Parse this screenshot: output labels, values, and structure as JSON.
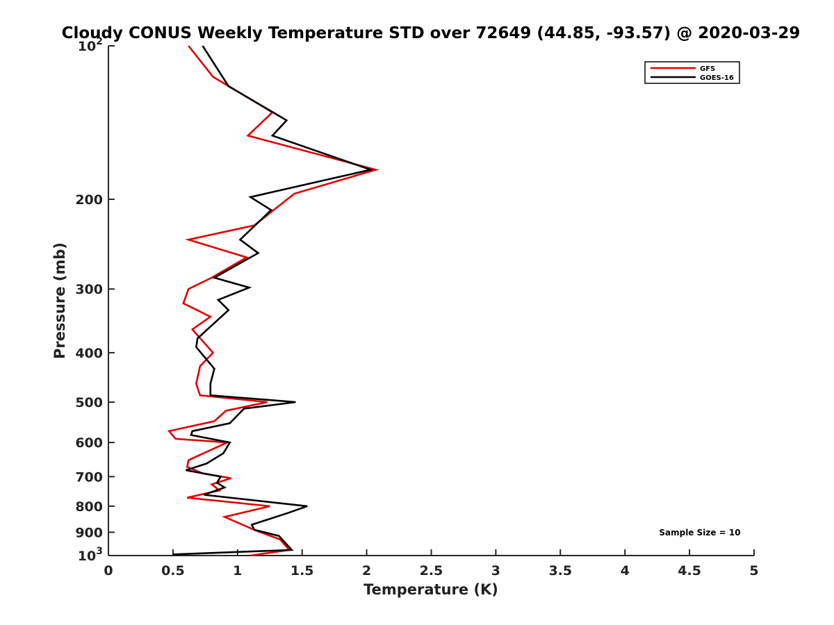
{
  "chart_data": {
    "type": "line",
    "title": "Cloudy CONUS Weekly Temperature STD over 72649 (44.85, -93.57) @ 2020-03-29",
    "xlabel": "Temperature (K)",
    "ylabel": "Pressure (mb)",
    "xlim": [
      0,
      5
    ],
    "ylim": [
      1000,
      100
    ],
    "yscale": "log",
    "y_reversed": true,
    "grid": false,
    "x_ticks": [
      0,
      0.5,
      1,
      1.5,
      2,
      2.5,
      3,
      3.5,
      4,
      4.5,
      5
    ],
    "x_tick_labels": [
      "0",
      "0.5",
      "1",
      "1.5",
      "2",
      "2.5",
      "3",
      "3.5",
      "4",
      "4.5",
      "5"
    ],
    "y_ticks": [
      100,
      200,
      300,
      400,
      500,
      600,
      700,
      800,
      900,
      1000
    ],
    "y_tick_labels": [
      {
        "base": "10",
        "exp": "2"
      },
      {
        "base": "200",
        "exp": ""
      },
      {
        "base": "300",
        "exp": ""
      },
      {
        "base": "400",
        "exp": ""
      },
      {
        "base": "500",
        "exp": ""
      },
      {
        "base": "600",
        "exp": ""
      },
      {
        "base": "700",
        "exp": ""
      },
      {
        "base": "800",
        "exp": ""
      },
      {
        "base": "900",
        "exp": ""
      },
      {
        "base": "10",
        "exp": "3"
      }
    ],
    "legend_position": "top-right",
    "series": [
      {
        "name": "GFS",
        "color": "#e00000",
        "points": [
          [
            0.62,
            100
          ],
          [
            0.81,
            115
          ],
          [
            1.27,
            135
          ],
          [
            1.08,
            150
          ],
          [
            2.07,
            175
          ],
          [
            1.44,
            195
          ],
          [
            1.13,
            225
          ],
          [
            0.62,
            240
          ],
          [
            1.07,
            260
          ],
          [
            0.8,
            285
          ],
          [
            0.62,
            300
          ],
          [
            0.58,
            320
          ],
          [
            0.79,
            340
          ],
          [
            0.65,
            360
          ],
          [
            0.81,
            400
          ],
          [
            0.71,
            425
          ],
          [
            0.68,
            460
          ],
          [
            0.71,
            485
          ],
          [
            1.23,
            500
          ],
          [
            0.91,
            520
          ],
          [
            0.82,
            545
          ],
          [
            0.47,
            570
          ],
          [
            0.52,
            590
          ],
          [
            0.92,
            600
          ],
          [
            0.62,
            650
          ],
          [
            0.61,
            670
          ],
          [
            0.73,
            690
          ],
          [
            0.95,
            705
          ],
          [
            0.8,
            725
          ],
          [
            0.86,
            745
          ],
          [
            0.61,
            770
          ],
          [
            1.25,
            800
          ],
          [
            0.9,
            840
          ],
          [
            1.15,
            895
          ],
          [
            1.33,
            930
          ],
          [
            1.4,
            975
          ],
          [
            1.1,
            1000
          ]
        ]
      },
      {
        "name": "GOES-16",
        "color": "#000000",
        "points": [
          [
            0.73,
            100
          ],
          [
            0.93,
            120
          ],
          [
            1.38,
            140
          ],
          [
            1.27,
            150
          ],
          [
            2.03,
            175
          ],
          [
            1.1,
            198
          ],
          [
            1.26,
            210
          ],
          [
            1.02,
            240
          ],
          [
            1.16,
            255
          ],
          [
            0.82,
            285
          ],
          [
            1.09,
            298
          ],
          [
            0.85,
            315
          ],
          [
            0.93,
            330
          ],
          [
            0.69,
            375
          ],
          [
            0.68,
            390
          ],
          [
            0.82,
            430
          ],
          [
            0.79,
            460
          ],
          [
            0.79,
            485
          ],
          [
            1.45,
            500
          ],
          [
            1.05,
            515
          ],
          [
            0.94,
            550
          ],
          [
            0.65,
            570
          ],
          [
            0.64,
            580
          ],
          [
            0.94,
            600
          ],
          [
            0.89,
            630
          ],
          [
            0.76,
            660
          ],
          [
            0.6,
            680
          ],
          [
            0.87,
            700
          ],
          [
            0.84,
            720
          ],
          [
            0.9,
            735
          ],
          [
            0.74,
            760
          ],
          [
            1.54,
            800
          ],
          [
            1.39,
            825
          ],
          [
            1.11,
            870
          ],
          [
            1.13,
            890
          ],
          [
            1.32,
            915
          ],
          [
            1.42,
            975
          ],
          [
            0.5,
            995
          ]
        ]
      }
    ],
    "annotations": [
      "Sample Size = 10"
    ]
  }
}
